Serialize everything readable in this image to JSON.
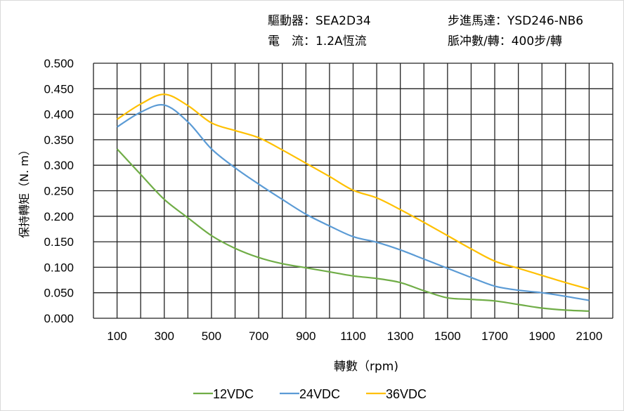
{
  "header": {
    "driver_label": "驅動器：",
    "driver_value": "SEA2D34",
    "motor_label": "步進馬達：",
    "motor_value": "YSD246-NB6",
    "current_label": "電　流：",
    "current_value": "1.2A恆流",
    "pulses_label": "脈冲數/轉：",
    "pulses_value": "400步/轉"
  },
  "chart_data": {
    "type": "line",
    "title": "",
    "xlabel": "轉數（rpm)",
    "ylabel": "保持轉矩（N. m）",
    "xlim": [
      0,
      2200
    ],
    "ylim": [
      0,
      0.5
    ],
    "x_ticks": [
      "100",
      "300",
      "500",
      "700",
      "900",
      "1100",
      "1300",
      "1500",
      "1700",
      "1900",
      "2100"
    ],
    "y_ticks": [
      "0.000",
      "0.050",
      "0.100",
      "0.150",
      "0.200",
      "0.250",
      "0.300",
      "0.350",
      "0.400",
      "0.450",
      "0.500"
    ],
    "grid": true,
    "legend_position": "bottom",
    "x": [
      100,
      200,
      300,
      400,
      500,
      600,
      700,
      800,
      900,
      1000,
      1100,
      1200,
      1300,
      1400,
      1500,
      1600,
      1700,
      1800,
      1900,
      2000,
      2100
    ],
    "series": [
      {
        "name": "12VDC",
        "color": "#70ad47",
        "values": [
          0.332,
          0.282,
          0.233,
          0.197,
          0.162,
          0.137,
          0.119,
          0.107,
          0.099,
          0.091,
          0.083,
          0.078,
          0.07,
          0.054,
          0.04,
          0.037,
          0.034,
          0.027,
          0.02,
          0.016,
          0.014
        ]
      },
      {
        "name": "24VDC",
        "color": "#5b9bd5",
        "values": [
          0.375,
          0.404,
          0.418,
          0.385,
          0.332,
          0.295,
          0.263,
          0.233,
          0.204,
          0.181,
          0.16,
          0.149,
          0.134,
          0.116,
          0.098,
          0.08,
          0.063,
          0.055,
          0.05,
          0.043,
          0.035
        ]
      },
      {
        "name": "36VDC",
        "color": "#ffc000",
        "values": [
          0.39,
          0.42,
          0.439,
          0.417,
          0.383,
          0.368,
          0.354,
          0.33,
          0.304,
          0.278,
          0.251,
          0.236,
          0.213,
          0.188,
          0.162,
          0.136,
          0.112,
          0.098,
          0.084,
          0.07,
          0.057
        ]
      }
    ]
  }
}
